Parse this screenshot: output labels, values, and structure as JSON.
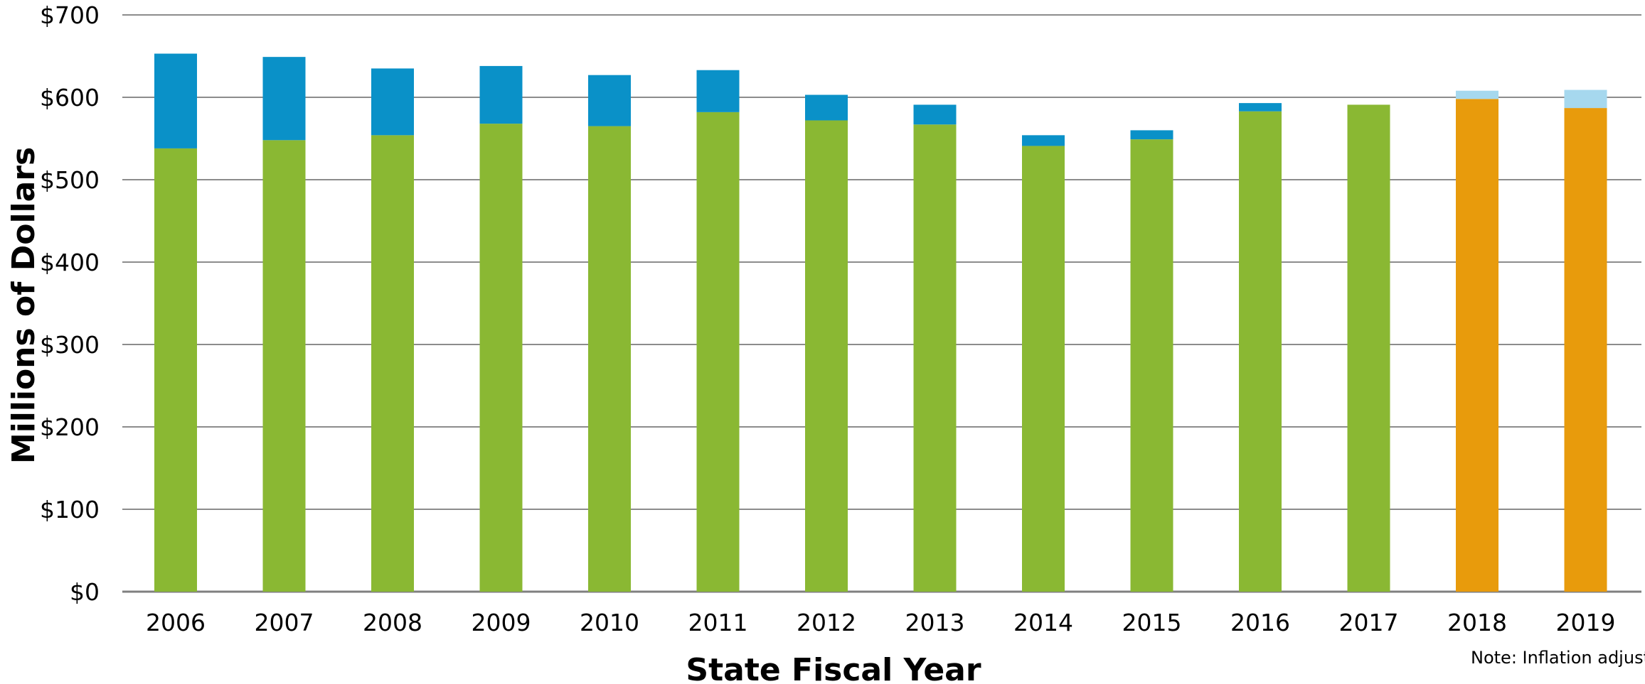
{
  "chart_data": {
    "type": "bar",
    "stacked": true,
    "categories": [
      "2006",
      "2007",
      "2008",
      "2009",
      "2010",
      "2011",
      "2012",
      "2013",
      "2014",
      "2015",
      "2016",
      "2017",
      "2018",
      "2019"
    ],
    "series": [
      {
        "values": [
          538,
          548,
          554,
          568,
          565,
          582,
          572,
          567,
          541,
          549,
          583,
          591,
          0,
          0
        ],
        "color": "#8AB833"
      },
      {
        "values": [
          115,
          101,
          81,
          70,
          62,
          51,
          31,
          24,
          13,
          11,
          10,
          0,
          0,
          0
        ],
        "color": "#0A91C8"
      },
      {
        "values": [
          0,
          0,
          0,
          0,
          0,
          0,
          0,
          0,
          0,
          0,
          0,
          0,
          598,
          587
        ],
        "color": "#E89B0C"
      },
      {
        "values": [
          0,
          0,
          0,
          0,
          0,
          0,
          0,
          0,
          0,
          0,
          0,
          0,
          10,
          22
        ],
        "color": "#A6D8EE"
      }
    ],
    "ylabel": "Millions of Dollars",
    "xlabel": "State Fiscal Year",
    "ylim": [
      0,
      700
    ],
    "yticks": [
      0,
      100,
      200,
      300,
      400,
      500,
      600,
      700
    ],
    "ytick_labels": [
      "$0",
      "$100",
      "$200",
      "$300",
      "$400",
      "$500",
      "$600",
      "$700"
    ],
    "grid": true,
    "annotation": "Note: Inflation adjustment for current"
  }
}
